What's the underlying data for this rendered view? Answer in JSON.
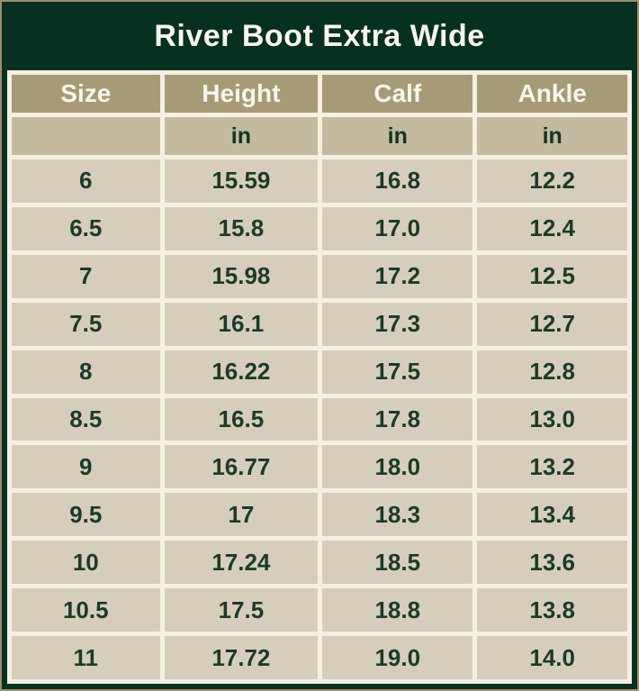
{
  "title": "River Boot Extra Wide",
  "colors": {
    "frame_green": "#06301f",
    "header_tan": "#a79a77",
    "units_tan": "#c4ba9f",
    "cell_tan": "#d6cebb",
    "gridline_cream": "#f4f0e2",
    "outer_edge_tan": "#9c8f6f",
    "text_white": "#f8f5ec",
    "text_green": "#1d3a2a"
  },
  "chart_data": {
    "type": "table",
    "title": "River Boot Extra Wide",
    "columns": [
      "Size",
      "Height",
      "Calf",
      "Ankle"
    ],
    "units_row": [
      "",
      "in",
      "in",
      "in"
    ],
    "rows": [
      [
        "6",
        "15.59",
        "16.8",
        "12.2"
      ],
      [
        "6.5",
        "15.8",
        "17.0",
        "12.4"
      ],
      [
        "7",
        "15.98",
        "17.2",
        "12.5"
      ],
      [
        "7.5",
        "16.1",
        "17.3",
        "12.7"
      ],
      [
        "8",
        "16.22",
        "17.5",
        "12.8"
      ],
      [
        "8.5",
        "16.5",
        "17.8",
        "13.0"
      ],
      [
        "9",
        "16.77",
        "18.0",
        "13.2"
      ],
      [
        "9.5",
        "17",
        "18.3",
        "13.4"
      ],
      [
        "10",
        "17.24",
        "18.5",
        "13.6"
      ],
      [
        "10.5",
        "17.5",
        "18.8",
        "13.8"
      ],
      [
        "11",
        "17.72",
        "19.0",
        "14.0"
      ]
    ]
  }
}
